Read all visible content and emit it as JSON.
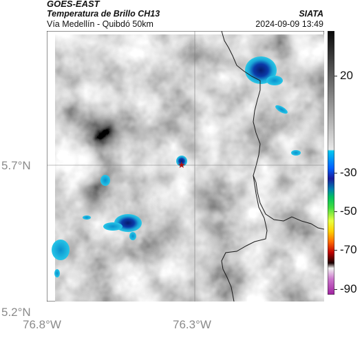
{
  "header": {
    "satellite": "GOES-EAST",
    "product": "Temperatura de Brillo CH13",
    "subtitle": "Vía Medellín - Quibdó 50km",
    "organization": "SIATA",
    "timestamp": "2024-09-09 13:49"
  },
  "map": {
    "lat_ticks": [
      "5.7°N",
      "5.2°N"
    ],
    "lon_ticks": [
      "76.8°W",
      "76.3°W"
    ],
    "lat_range": [
      5.2,
      6.2
    ],
    "lon_range": [
      -76.8,
      -75.8
    ],
    "grid": true,
    "marker": "star-icon",
    "colors": {
      "cold_cloud_core": "#0b2a8a",
      "cold_cloud_edge": "#19b6d6",
      "land_background": "#9a9a9a",
      "boundary_line": "#222222"
    }
  },
  "colorbar": {
    "ticks": [
      "20",
      "-30",
      "-50",
      "-70",
      "-90"
    ],
    "tick_values": [
      20,
      -30,
      -50,
      -70,
      -90
    ],
    "range": [
      -93,
      43
    ],
    "colors": {
      "warm_top": "#111111",
      "cyan": "#00b4e6",
      "blue": "#0040ff",
      "green": "#2ecc2e",
      "yellow": "#ffff00",
      "orange": "#ff7700",
      "red": "#cc0000",
      "magenta": "#c050c0"
    }
  }
}
